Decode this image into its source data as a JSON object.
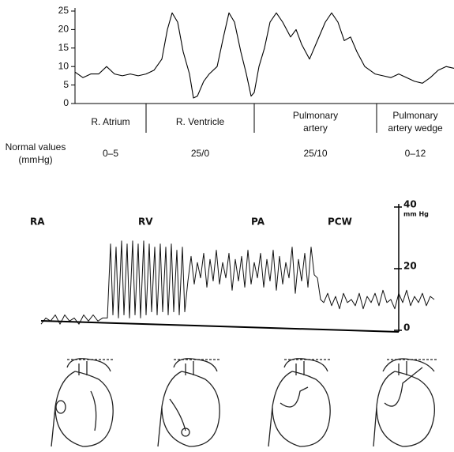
{
  "chart_data": [
    {
      "type": "line",
      "color": "#000000",
      "ylim": [
        0,
        25
      ],
      "yticks": [
        0,
        5,
        10,
        15,
        20,
        25
      ],
      "xlim": [
        0,
        480
      ],
      "x": [
        0,
        10,
        20,
        30,
        40,
        50,
        60,
        70,
        80,
        90,
        100,
        110,
        117,
        123,
        130,
        137,
        145,
        150,
        155,
        163,
        170,
        180,
        188,
        195,
        202,
        210,
        217,
        223,
        227,
        233,
        240,
        247,
        255,
        263,
        273,
        280,
        287,
        297,
        307,
        317,
        325,
        333,
        341,
        349,
        357,
        367,
        380,
        390,
        400,
        410,
        420,
        430,
        440,
        450,
        460,
        470,
        480
      ],
      "values": [
        8.5,
        7,
        8,
        8,
        10,
        8,
        7.5,
        8,
        7.5,
        8,
        9,
        12,
        20,
        24.5,
        22,
        14,
        8,
        1.5,
        2,
        6,
        8,
        10,
        18,
        24.5,
        22,
        14,
        8,
        2,
        3,
        10,
        15,
        22,
        24.5,
        22,
        18,
        20,
        16,
        12,
        17,
        22,
        24.5,
        22,
        17,
        18,
        14,
        10,
        8,
        7.5,
        7,
        8,
        7,
        6,
        5.5,
        7,
        9,
        10,
        9.5
      ],
      "regions": [
        {
          "label": [
            "R. Atrium"
          ],
          "normal": "0–5"
        },
        {
          "label": [
            "R. Ventricle"
          ],
          "normal": "25/0"
        },
        {
          "label": [
            "Pulmonary",
            "artery"
          ],
          "normal": "25/10"
        },
        {
          "label": [
            "Pulmonary",
            "artery wedge"
          ],
          "normal": "0–12"
        }
      ],
      "normal_values_label": [
        "Normal values",
        "(mmHg)"
      ]
    },
    {
      "type": "line",
      "color": "#111111",
      "ylim": [
        0,
        40
      ],
      "yticks": [
        0,
        20,
        40
      ],
      "y_label": "mm Hg",
      "xlim": [
        0,
        500
      ],
      "phases": [
        "RA",
        "RV",
        "PA",
        "PCW"
      ],
      "x": [
        0,
        6,
        12,
        18,
        24,
        30,
        36,
        42,
        48,
        54,
        60,
        66,
        72,
        78,
        84,
        88,
        91,
        95,
        98,
        102,
        105,
        109,
        112,
        116,
        119,
        123,
        126,
        130,
        133,
        137,
        140,
        144,
        147,
        151,
        154,
        158,
        161,
        165,
        168,
        172,
        175,
        179,
        182,
        186,
        190,
        194,
        198,
        202,
        206,
        210,
        214,
        218,
        222,
        226,
        230,
        234,
        238,
        242,
        246,
        250,
        254,
        258,
        262,
        266,
        270,
        274,
        278,
        282,
        286,
        290,
        294,
        298,
        302,
        306,
        310,
        314,
        318,
        322,
        326,
        330,
        334,
        338,
        342,
        346,
        350,
        354,
        358,
        363,
        368,
        373,
        378,
        383,
        388,
        393,
        398,
        403,
        408,
        413,
        418,
        423,
        428,
        433,
        438,
        443,
        448,
        453,
        458,
        463,
        468,
        473,
        478,
        483,
        488,
        493,
        498
      ],
      "values": [
        2,
        4,
        3,
        5,
        2,
        5,
        3,
        4,
        2,
        5,
        3,
        5,
        3,
        4,
        4,
        28,
        5,
        27,
        4,
        29,
        5,
        28,
        4,
        29,
        5,
        28,
        4,
        29,
        5,
        28,
        6,
        27,
        5,
        28,
        6,
        27,
        5,
        28,
        6,
        26,
        5,
        27,
        6,
        16,
        24,
        15,
        22,
        17,
        25,
        14,
        23,
        16,
        26,
        15,
        22,
        17,
        25,
        13,
        23,
        16,
        24,
        14,
        26,
        15,
        22,
        17,
        25,
        14,
        23,
        16,
        26,
        13,
        24,
        15,
        22,
        17,
        27,
        12,
        23,
        16,
        25,
        14,
        27,
        18,
        17,
        10,
        9,
        12,
        8,
        11,
        7,
        12,
        9,
        10,
        8,
        12,
        7,
        11,
        9,
        12,
        8,
        13,
        9,
        10,
        7,
        12,
        9,
        13,
        8,
        11,
        9,
        12,
        8,
        11,
        10
      ]
    }
  ]
}
